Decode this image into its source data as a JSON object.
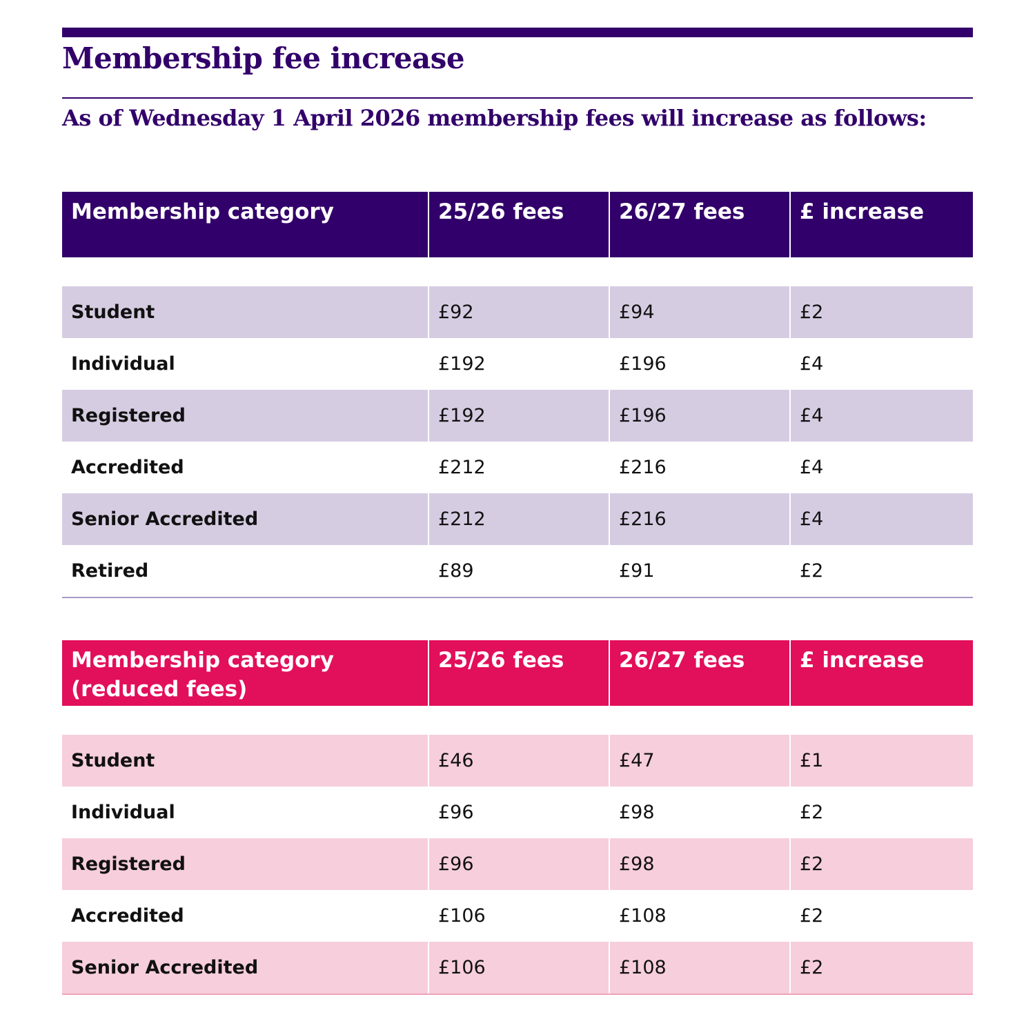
{
  "title": "Membership fee increase",
  "subtitle": "As of Wednesday 1 April 2026 membership fees will increase as follows:",
  "colors": {
    "purple": "#32006a",
    "purple_band": "#d6cce2",
    "purple_line": "#a898c4",
    "pink": "#e20f5a",
    "pink_band": "#f7cedb",
    "pink_line": "#f0a0b8"
  },
  "tables": [
    {
      "headers": [
        "Membership category",
        "25/26 fees",
        "26/27 fees",
        "£ increase"
      ],
      "rows": [
        [
          "Student",
          "£92",
          "£94",
          "£2"
        ],
        [
          "Individual",
          "£192",
          "£196",
          "£4"
        ],
        [
          "Registered",
          "£192",
          "£196",
          "£4"
        ],
        [
          "Accredited",
          "£212",
          "£216",
          "£4"
        ],
        [
          "Senior Accredited",
          "£212",
          "£216",
          "£4"
        ],
        [
          "Retired",
          "£89",
          "£91",
          "£2"
        ]
      ]
    },
    {
      "headers": [
        "Membership category\n(reduced fees)",
        "25/26 fees",
        "26/27 fees",
        "£ increase"
      ],
      "rows": [
        [
          "Student",
          "£46",
          "£47",
          "£1"
        ],
        [
          "Individual",
          "£96",
          "£98",
          "£2"
        ],
        [
          "Registered",
          "£96",
          "£98",
          "£2"
        ],
        [
          "Accredited",
          "£106",
          "£108",
          "£2"
        ],
        [
          "Senior Accredited",
          "£106",
          "£108",
          "£2"
        ]
      ]
    }
  ]
}
